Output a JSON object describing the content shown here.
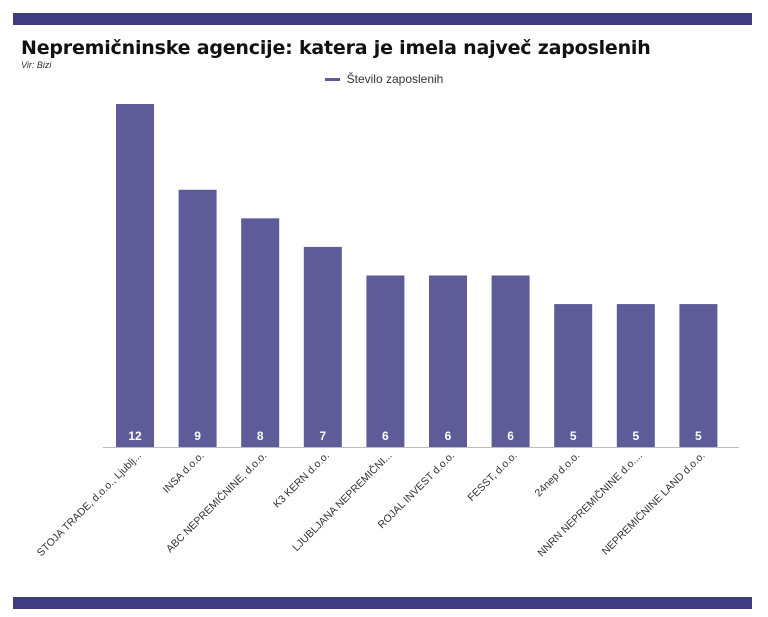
{
  "title": "Nepremičninske agencije: katera je imela največ zaposlenih",
  "source": "Vir: Bizi",
  "colors": {
    "band": "#3f3d80",
    "bar": "#5d5c98",
    "value_label": "#ffffff"
  },
  "chart_data": {
    "type": "bar",
    "title": "Nepremičninske agencije: katera je imela največ zaposlenih",
    "categories": [
      "STOJA TRADE, d.o.o., Ljublj...",
      "INSA d.o.o.",
      "ABC NEPREMIČNINE, d.o.o.",
      "K3 KERN d.o.o.",
      "LJUBLJANA NEPREMIČNI...",
      "ROJAL INVEST d.o.o.",
      "FESST, d.o.o.",
      "24nep d.o.o.",
      "NNRN NEPREMIČNINE d.o....",
      "NEPREMIČNINE LAND d.o.o."
    ],
    "series": [
      {
        "name": "Število zaposlenih",
        "values": [
          12,
          9,
          8,
          7,
          6,
          6,
          6,
          5,
          5,
          5
        ]
      }
    ],
    "ylim": [
      0,
      12
    ],
    "grid": false,
    "legend_position": "top-center",
    "data_labels": "inside-bottom"
  }
}
